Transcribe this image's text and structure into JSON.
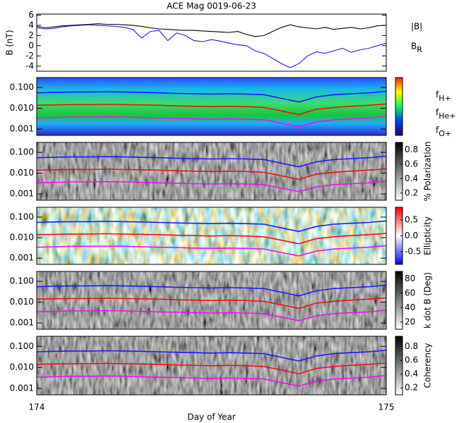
{
  "chart_data": [
    {
      "type": "line",
      "title": "ACE Mag 0019-06-23",
      "y_label": "B (nT)",
      "xlim": [
        174,
        175
      ],
      "ylim": [
        -5,
        6.2
      ],
      "yticks": [
        -4,
        -2,
        0,
        2,
        4,
        6
      ],
      "x": [
        174,
        174.025,
        174.05,
        174.075,
        174.1,
        174.125,
        174.15,
        174.175,
        174.2,
        174.225,
        174.25,
        174.275,
        174.3,
        174.325,
        174.35,
        174.375,
        174.4,
        174.425,
        174.45,
        174.475,
        174.5,
        174.525,
        174.55,
        174.575,
        174.6,
        174.625,
        174.65,
        174.675,
        174.7,
        174.725,
        174.75,
        174.775,
        174.8,
        174.825,
        174.85,
        174.875,
        174.9,
        174.925,
        174.95,
        174.975,
        175
      ],
      "series": [
        {
          "name": "|B|",
          "color": "#000000",
          "values": [
            3.8,
            3.5,
            3.7,
            3.9,
            4.0,
            4.1,
            4.2,
            4.3,
            4.2,
            4.2,
            4.1,
            4.0,
            3.8,
            3.5,
            3.3,
            3.2,
            3.1,
            3.0,
            3.0,
            2.9,
            2.8,
            2.7,
            2.6,
            2.8,
            2.2,
            1.8,
            2.0,
            2.8,
            3.6,
            4.1,
            3.7,
            3.5,
            3.3,
            3.6,
            3.2,
            3.4,
            3.6,
            3.3,
            3.5,
            3.9,
            4.0
          ]
        },
        {
          "name": "BR",
          "color": "#1a1aff",
          "values": [
            3.5,
            3.3,
            3.4,
            3.7,
            3.9,
            4.0,
            4.1,
            4.0,
            3.9,
            3.8,
            3.6,
            3.2,
            1.5,
            2.8,
            3.0,
            1.0,
            2.5,
            2.0,
            1.0,
            0.8,
            1.2,
            0.9,
            0.5,
            0.2,
            0.0,
            -1.0,
            -1.5,
            -2.5,
            -3.5,
            -4.3,
            -3.5,
            -2.0,
            -1.2,
            -1.5,
            -1.0,
            -0.5,
            -1.3,
            -0.8,
            -0.5,
            0.0,
            0.5
          ]
        }
      ]
    },
    {
      "type": "spectrogram",
      "colormap": "jet",
      "log_y": true,
      "ylim": [
        0.0005,
        0.3
      ],
      "yticks": [
        0.001,
        {
          "value": 0.01,
          "label": "0.010"
        },
        {
          "value": 0.1,
          "label": "0.100"
        }
      ],
      "x": [
        174,
        174.05,
        174.1,
        174.15,
        174.2,
        174.25,
        174.3,
        174.35,
        174.4,
        174.45,
        174.5,
        174.55,
        174.6,
        174.65,
        174.7,
        174.75,
        174.8,
        174.85,
        174.9,
        174.95,
        175
      ],
      "series": [
        {
          "name": "fH+",
          "color": "#1a1aff",
          "values": [
            0.055,
            0.058,
            0.06,
            0.06,
            0.062,
            0.06,
            0.058,
            0.055,
            0.052,
            0.05,
            0.048,
            0.05,
            0.048,
            0.045,
            0.03,
            0.02,
            0.035,
            0.045,
            0.05,
            0.055,
            0.065
          ]
        },
        {
          "name": "fHe+",
          "color": "#ee1111",
          "values": [
            0.014,
            0.0145,
            0.015,
            0.015,
            0.0155,
            0.015,
            0.0145,
            0.014,
            0.013,
            0.0125,
            0.012,
            0.0125,
            0.012,
            0.011,
            0.0075,
            0.005,
            0.009,
            0.011,
            0.0125,
            0.014,
            0.016
          ]
        },
        {
          "name": "fO+",
          "color": "#ee11ee",
          "values": [
            0.0034,
            0.0036,
            0.0038,
            0.0038,
            0.0039,
            0.0038,
            0.0036,
            0.0034,
            0.0033,
            0.0031,
            0.003,
            0.0031,
            0.003,
            0.0028,
            0.0019,
            0.0013,
            0.0022,
            0.0028,
            0.0031,
            0.0034,
            0.0041
          ]
        }
      ]
    },
    {
      "type": "spectrogram",
      "colormap": "gray",
      "colorbar_label": "% Polarization",
      "clim": [
        0.1,
        0.9
      ],
      "cticks": [
        0.2,
        0.4,
        0.6,
        0.8
      ]
    },
    {
      "type": "spectrogram",
      "colormap": "bwr",
      "colorbar_label": "Ellipticity",
      "clim": [
        -0.9,
        0.9
      ],
      "cticks": [
        -0.5,
        {
          "value": 0,
          "label": "0.0"
        },
        0.5
      ]
    },
    {
      "type": "spectrogram",
      "colormap": "gray",
      "colorbar_label": "k dot B (Deg)",
      "clim": [
        10,
        90
      ],
      "cticks": [
        20,
        40,
        60,
        80
      ]
    },
    {
      "type": "spectrogram",
      "colormap": "gray",
      "colorbar_label": "Coherency",
      "clim": [
        0.1,
        0.95
      ],
      "cticks": [
        0.2,
        0.4,
        0.6,
        0.8
      ],
      "xticks": [
        174,
        175
      ],
      "x_label": "Day of Year"
    }
  ]
}
